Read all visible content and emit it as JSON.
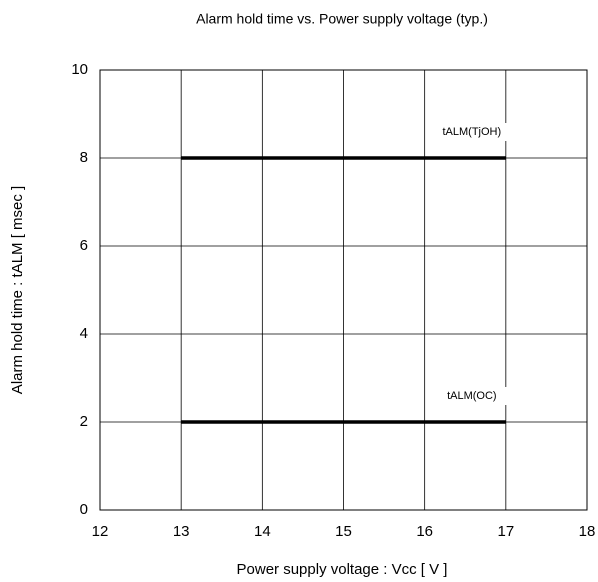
{
  "chart_data": {
    "type": "line",
    "title": "Alarm hold time vs. Power supply voltage (typ.)",
    "x_label": "Power supply voltage : Vcc [ V ]",
    "y_label": "Alarm hold time : tALM [ msec ]",
    "series": [
      {
        "name": "tALM(TjOH)",
        "color": "#000000",
        "x": [
          13,
          17
        ],
        "values": [
          8,
          8
        ]
      },
      {
        "name": "tALM(OC)",
        "color": "#000000",
        "x": [
          13,
          17
        ],
        "values": [
          2,
          2
        ]
      }
    ],
    "xlim": [
      12,
      18
    ],
    "xticks": [
      12,
      13,
      14,
      15,
      16,
      17,
      18
    ],
    "ylim": [
      0,
      10
    ],
    "yticks": [
      0,
      2,
      4,
      6,
      8,
      10
    ],
    "grid": true
  }
}
